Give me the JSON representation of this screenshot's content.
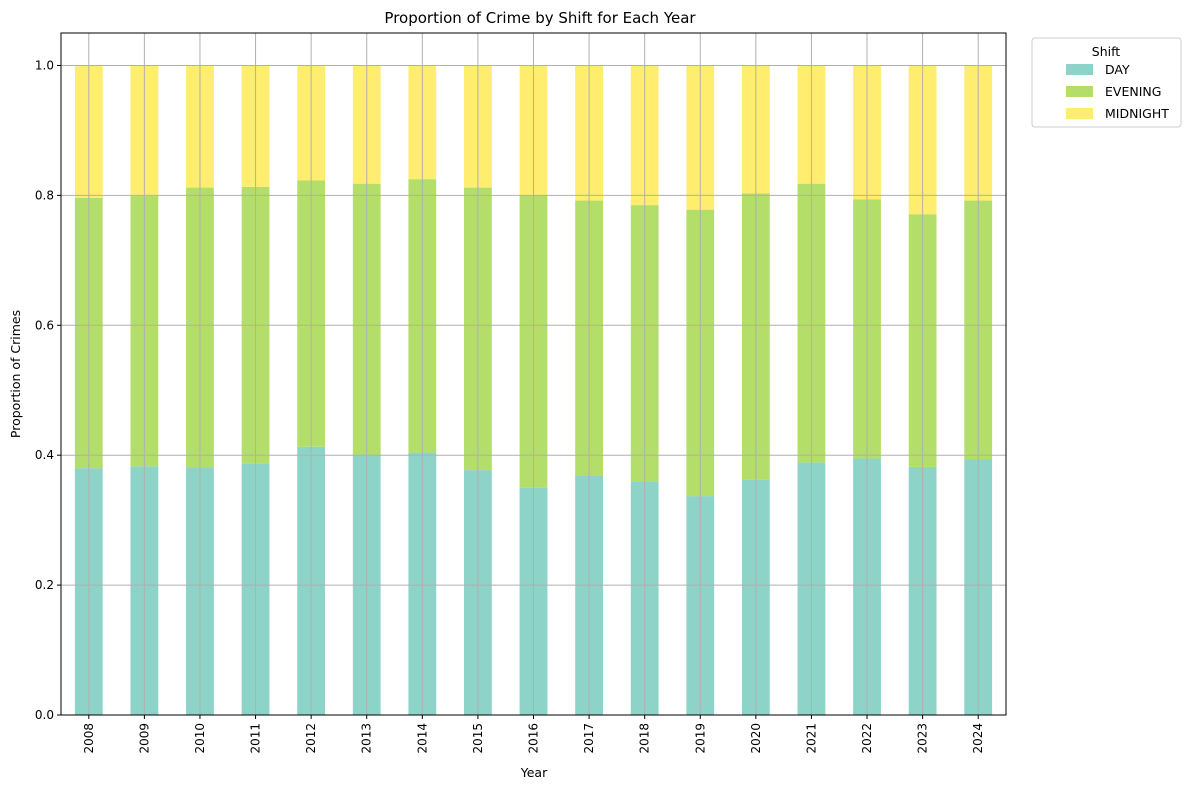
{
  "chart_data": {
    "type": "bar",
    "stacked": true,
    "title": "Proportion of Crime by Shift for Each Year",
    "xlabel": "Year",
    "ylabel": "Proportion of Crimes",
    "ylim": [
      0,
      1.05
    ],
    "yticks": [
      "0.0",
      "0.2",
      "0.4",
      "0.6",
      "0.8",
      "1.0"
    ],
    "grid": true,
    "legend": {
      "title": "Shift",
      "placement": "outside-top-right"
    },
    "categories": [
      "2008",
      "2009",
      "2010",
      "2011",
      "2012",
      "2013",
      "2014",
      "2015",
      "2016",
      "2017",
      "2018",
      "2019",
      "2020",
      "2021",
      "2022",
      "2023",
      "2024"
    ],
    "series": [
      {
        "name": "DAY",
        "color": "#8dd3c7",
        "values": [
          0.38,
          0.383,
          0.381,
          0.387,
          0.413,
          0.4,
          0.404,
          0.377,
          0.35,
          0.368,
          0.36,
          0.337,
          0.362,
          0.389,
          0.395,
          0.382,
          0.394
        ]
      },
      {
        "name": "EVENING",
        "color": "#b3de69",
        "values": [
          0.416,
          0.416,
          0.431,
          0.426,
          0.41,
          0.418,
          0.421,
          0.435,
          0.45,
          0.424,
          0.425,
          0.441,
          0.441,
          0.429,
          0.399,
          0.389,
          0.398
        ]
      },
      {
        "name": "MIDNIGHT",
        "color": "#ffed6f",
        "values": [
          0.204,
          0.201,
          0.188,
          0.187,
          0.177,
          0.182,
          0.175,
          0.188,
          0.2,
          0.208,
          0.215,
          0.222,
          0.197,
          0.182,
          0.206,
          0.229,
          0.208
        ]
      }
    ]
  }
}
